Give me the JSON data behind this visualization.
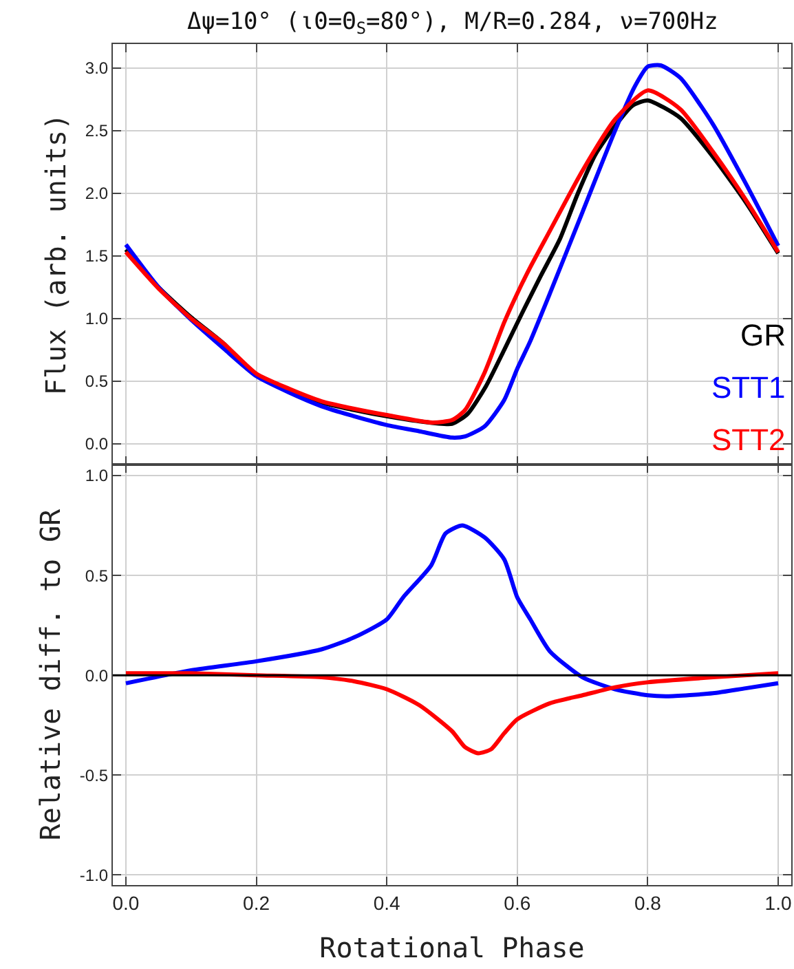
{
  "chart_data": [
    {
      "type": "line",
      "title": "Δψ=10° (ι0=Θ$_{S}$=80°), M/R=0.284, ν=700Hz",
      "ylabel": "Flux (arb. units)",
      "x": [
        0,
        0.05,
        0.1,
        0.15,
        0.2,
        0.25,
        0.3,
        0.35,
        0.4,
        0.45,
        0.5,
        0.524,
        0.552,
        0.58,
        0.608,
        0.636,
        0.665,
        0.693,
        0.72,
        0.749,
        0.777,
        0.8,
        0.85,
        0.9,
        0.95,
        1.0
      ],
      "series": [
        {
          "name": "GR",
          "color": "#000000",
          "values": [
            1.55,
            1.25,
            1.01,
            0.8,
            0.55,
            0.43,
            0.33,
            0.27,
            0.22,
            0.18,
            0.16,
            0.24,
            0.46,
            0.75,
            1.05,
            1.34,
            1.63,
            2.0,
            2.31,
            2.53,
            2.7,
            2.74,
            2.6,
            2.29,
            1.93,
            1.52
          ]
        },
        {
          "name": "STT1",
          "color": "#0000ff",
          "x": [
            0,
            0.05,
            0.1,
            0.15,
            0.2,
            0.25,
            0.3,
            0.35,
            0.4,
            0.45,
            0.5,
            0.52,
            0.55,
            0.58,
            0.6,
            0.62,
            0.65,
            0.7,
            0.75,
            0.78,
            0.8,
            0.82,
            0.85,
            0.9,
            0.95,
            1.0
          ],
          "values": [
            1.59,
            1.25,
            0.99,
            0.76,
            0.54,
            0.41,
            0.3,
            0.22,
            0.15,
            0.1,
            0.05,
            0.06,
            0.14,
            0.35,
            0.6,
            0.82,
            1.2,
            1.85,
            2.5,
            2.85,
            3.01,
            3.02,
            2.92,
            2.55,
            2.08,
            1.58
          ]
        },
        {
          "name": "STT2",
          "color": "#ff0000",
          "x": [
            0,
            0.05,
            0.1,
            0.15,
            0.2,
            0.25,
            0.3,
            0.35,
            0.4,
            0.47,
            0.5,
            0.52,
            0.55,
            0.58,
            0.6,
            0.62,
            0.65,
            0.7,
            0.75,
            0.8,
            0.85,
            0.9,
            0.95,
            1.0
          ],
          "values": [
            1.53,
            1.24,
            1.0,
            0.8,
            0.56,
            0.44,
            0.34,
            0.28,
            0.23,
            0.17,
            0.19,
            0.27,
            0.57,
            0.97,
            1.2,
            1.41,
            1.7,
            2.18,
            2.59,
            2.82,
            2.67,
            2.33,
            1.95,
            1.53
          ]
        }
      ],
      "xlim": [
        -0.02,
        1.02
      ],
      "ylim": [
        -0.165,
        3.19
      ],
      "xticks": [
        {
          "value": 0,
          "label": null
        },
        {
          "value": 0.2,
          "label": null
        },
        {
          "value": 0.4,
          "label": null
        },
        {
          "value": 0.6,
          "label": null
        },
        {
          "value": 0.8,
          "label": null
        },
        {
          "value": 1,
          "label": null
        }
      ],
      "yticks": [
        {
          "value": 0,
          "label": "0.0"
        },
        0.5,
        {
          "value": 1,
          "label": "1.0"
        },
        1.5,
        {
          "value": 2,
          "label": "2.0"
        },
        2.5,
        {
          "value": 3,
          "label": "3.0"
        }
      ],
      "tick_labels": "y",
      "grid": true,
      "legend": false
    },
    {
      "type": "line",
      "xlabel": "Rotational Phase",
      "ylabel": "Relative diff. to GR",
      "series": [
        {
          "color": "#0000ff",
          "x": [
            0,
            0.1,
            0.2,
            0.3,
            0.35,
            0.4,
            0.425,
            0.468,
            0.49,
            0.516,
            0.55,
            0.58,
            0.6,
            0.62,
            0.65,
            0.7,
            0.75,
            0.8,
            0.83,
            0.9,
            0.95,
            1.0
          ],
          "values": [
            -0.04,
            0.025,
            0.07,
            0.13,
            0.19,
            0.28,
            0.39,
            0.55,
            0.71,
            0.75,
            0.69,
            0.58,
            0.39,
            0.28,
            0.12,
            -0.01,
            -0.07,
            -0.1,
            -0.105,
            -0.09,
            -0.065,
            -0.04
          ]
        },
        {
          "color": "#ff0000",
          "x": [
            0,
            0.1,
            0.2,
            0.3,
            0.35,
            0.4,
            0.45,
            0.5,
            0.52,
            0.54,
            0.56,
            0.58,
            0.6,
            0.65,
            0.7,
            0.75,
            0.8,
            0.9,
            1.0
          ],
          "values": [
            0.01,
            0.01,
            0.0,
            -0.01,
            -0.03,
            -0.07,
            -0.15,
            -0.28,
            -0.36,
            -0.39,
            -0.37,
            -0.29,
            -0.22,
            -0.14,
            -0.1,
            -0.06,
            -0.035,
            -0.01,
            0.01
          ]
        }
      ],
      "xlim": [
        -0.02,
        1.02
      ],
      "ylim": [
        -1.05,
        1.055
      ],
      "xticks": [
        {
          "value": 0,
          "label": "0.0"
        },
        0.2,
        0.4,
        0.6,
        0.8,
        {
          "value": 1,
          "label": "1.0"
        }
      ],
      "yticks": [
        {
          "value": -1,
          "label": "-1.0"
        },
        -0.5,
        {
          "value": 0,
          "label": "0.0"
        },
        0.5,
        {
          "value": 1,
          "label": "1.0"
        }
      ],
      "ref_lines": [
        {
          "axis": "y",
          "value": 0,
          "color": "#000000"
        }
      ],
      "grid": true,
      "legend": false
    }
  ]
}
